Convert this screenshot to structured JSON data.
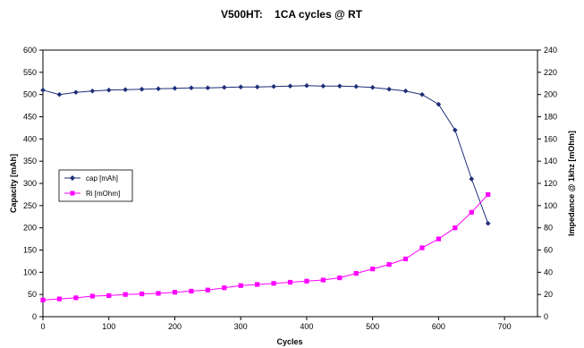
{
  "chart_data": {
    "type": "line",
    "title": "V500HT:    1CA cycles @ RT",
    "xlabel": "Cycles",
    "ylabel_left": "Capacity [mAh]",
    "ylabel_right": "Impedance @ 1khz [mOhm]",
    "xlim": [
      0,
      750
    ],
    "ylim_left": [
      0,
      600
    ],
    "ylim_right": [
      0,
      240
    ],
    "x_ticks": [
      "0",
      "100",
      "200",
      "300",
      "400",
      "500",
      "600",
      "700"
    ],
    "y_left_ticks": [
      "0",
      "50",
      "100",
      "150",
      "200",
      "250",
      "300",
      "350",
      "400",
      "450",
      "500",
      "550",
      "600"
    ],
    "y_right_ticks": [
      "0",
      "20",
      "40",
      "60",
      "80",
      "100",
      "120",
      "140",
      "160",
      "180",
      "200",
      "220",
      "240"
    ],
    "grid": false,
    "legend_position": "left-middle",
    "series": [
      {
        "name": "cap [mAh]",
        "axis": "left",
        "color": "#1f2e78",
        "marker": "diamond",
        "x": [
          0,
          25,
          50,
          75,
          100,
          125,
          150,
          175,
          200,
          225,
          250,
          275,
          300,
          325,
          350,
          375,
          400,
          425,
          450,
          475,
          500,
          525,
          550,
          575,
          600,
          625,
          650,
          675
        ],
        "y": [
          510,
          500,
          505,
          508,
          510,
          511,
          512,
          513,
          514,
          515,
          515,
          516,
          517,
          517,
          518,
          519,
          520,
          519,
          519,
          518,
          516,
          512,
          508,
          500,
          478,
          420,
          310,
          210
        ]
      },
      {
        "name": "Ri [mOhm]",
        "axis": "right",
        "color": "#ff00ff",
        "marker": "square",
        "x": [
          0,
          25,
          50,
          75,
          100,
          125,
          150,
          175,
          200,
          225,
          250,
          275,
          300,
          325,
          350,
          375,
          400,
          425,
          450,
          475,
          500,
          525,
          550,
          575,
          600,
          625,
          650,
          675
        ],
        "y": [
          15,
          16,
          17,
          18.5,
          19,
          20,
          20.5,
          21,
          22,
          23,
          24,
          26,
          28,
          29,
          30,
          31,
          32,
          33,
          35,
          39,
          43,
          47,
          52,
          62,
          70,
          80,
          94,
          110
        ]
      }
    ]
  }
}
